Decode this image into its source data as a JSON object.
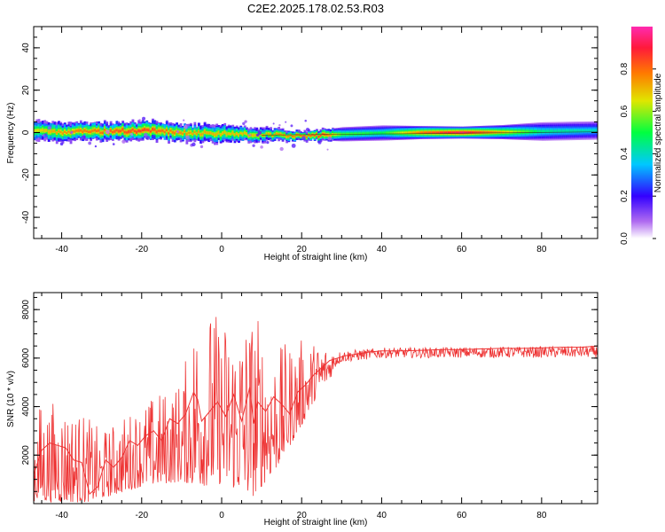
{
  "chart_data": [
    {
      "type": "heatmap",
      "title": "C2E2.2025.178.02.53.R03",
      "xlabel": "Height of straight line (km)",
      "ylabel": "Frequency (Hz)",
      "xlim": [
        -47,
        94
      ],
      "ylim": [
        -50,
        50
      ],
      "x_ticks": [
        -40,
        -20,
        0,
        20,
        40,
        60,
        80
      ],
      "y_ticks": [
        -40,
        -20,
        0,
        20,
        40
      ],
      "colorbar": {
        "label": "Normalized spectral amplitude",
        "range": [
          0.0,
          1.0
        ],
        "ticks": [
          0.0,
          0.2,
          0.4,
          0.6,
          0.8
        ],
        "colors": [
          "#ffffff",
          "#b06cf0",
          "#3300ff",
          "#00c8ff",
          "#00ff40",
          "#e0e600",
          "#ff7a00",
          "#ff1a3a",
          "#ff2ab0"
        ]
      },
      "band_profile": [
        {
          "x": -47,
          "center": 0.5,
          "halfwidth": 3.5,
          "peak": 0.65
        },
        {
          "x": -40,
          "center": 0.0,
          "halfwidth": 3.2,
          "peak": 0.75
        },
        {
          "x": -30,
          "center": 0.5,
          "halfwidth": 3.0,
          "peak": 0.8
        },
        {
          "x": -20,
          "center": 1.0,
          "halfwidth": 3.2,
          "peak": 0.85
        },
        {
          "x": -10,
          "center": 0.0,
          "halfwidth": 3.0,
          "peak": 0.75
        },
        {
          "x": 0,
          "center": -0.5,
          "halfwidth": 3.0,
          "peak": 0.7
        },
        {
          "x": 10,
          "center": -1.0,
          "halfwidth": 2.4,
          "peak": 0.7
        },
        {
          "x": 20,
          "center": -1.5,
          "halfwidth": 1.6,
          "peak": 0.8
        },
        {
          "x": 25,
          "center": -1.2,
          "halfwidth": 2.0,
          "peak": 0.85
        },
        {
          "x": 30,
          "center": -0.8,
          "halfwidth": 2.6,
          "peak": 0.55
        },
        {
          "x": 40,
          "center": -0.2,
          "halfwidth": 2.8,
          "peak": 0.5
        },
        {
          "x": 50,
          "center": 0.0,
          "halfwidth": 2.4,
          "peak": 0.8
        },
        {
          "x": 60,
          "center": 0.0,
          "halfwidth": 2.2,
          "peak": 0.95
        },
        {
          "x": 70,
          "center": 0.2,
          "halfwidth": 2.6,
          "peak": 0.7
        },
        {
          "x": 80,
          "center": 0.5,
          "halfwidth": 3.4,
          "peak": 0.45
        },
        {
          "x": 94,
          "center": 1.0,
          "halfwidth": 3.4,
          "peak": 0.4
        }
      ]
    },
    {
      "type": "line",
      "xlabel": "Height of straight line (km)",
      "ylabel": "SNR (10 * v/v)",
      "xlim": [
        -47,
        94
      ],
      "ylim": [
        0,
        8700
      ],
      "x_ticks": [
        -40,
        -20,
        0,
        20,
        40,
        60,
        80
      ],
      "y_ticks": [
        2000,
        4000,
        6000,
        8000
      ],
      "color": "#ee3333",
      "x": [
        -47,
        -45,
        -43,
        -41,
        -39,
        -37,
        -35,
        -33,
        -31,
        -29,
        -27,
        -25,
        -23,
        -21,
        -19,
        -17,
        -15,
        -13,
        -11,
        -9,
        -7,
        -6,
        -5,
        -3,
        -1,
        1,
        3,
        5,
        7,
        8,
        9,
        11,
        13,
        15,
        17,
        19,
        21,
        23,
        25,
        27,
        29,
        31,
        33,
        35,
        37,
        40,
        45,
        50,
        55,
        60,
        65,
        70,
        75,
        80,
        85,
        90,
        94
      ],
      "y": [
        1200,
        2200,
        2500,
        2400,
        2300,
        1800,
        1700,
        400,
        700,
        1800,
        1500,
        1900,
        2600,
        2400,
        2800,
        3000,
        2600,
        3500,
        3300,
        3700,
        4600,
        4300,
        3400,
        3800,
        4200,
        3600,
        4500,
        3400,
        4800,
        3300,
        4200,
        3800,
        4400,
        4100,
        3700,
        4600,
        4900,
        5300,
        5600,
        5900,
        6000,
        6100,
        6150,
        6200,
        6250,
        6300,
        6300,
        6320,
        6350,
        6350,
        6380,
        6400,
        6400,
        6420,
        6450,
        6450,
        6500
      ],
      "noise_envelope": [
        {
          "x": -47,
          "low": 50,
          "high": 4200
        },
        {
          "x": -40,
          "low": 50,
          "high": 4300
        },
        {
          "x": -34,
          "low": 50,
          "high": 3700
        },
        {
          "x": -30,
          "low": 200,
          "high": 3000
        },
        {
          "x": -20,
          "low": 700,
          "high": 4200
        },
        {
          "x": -10,
          "low": 900,
          "high": 5200
        },
        {
          "x": -6,
          "low": 700,
          "high": 8600
        },
        {
          "x": 0,
          "low": 800,
          "high": 7800
        },
        {
          "x": 8,
          "low": 300,
          "high": 8200
        },
        {
          "x": 14,
          "low": 1500,
          "high": 6500
        },
        {
          "x": 20,
          "low": 3200,
          "high": 6800
        },
        {
          "x": 25,
          "low": 4800,
          "high": 6600
        },
        {
          "x": 30,
          "low": 5700,
          "high": 6500
        },
        {
          "x": 40,
          "low": 5900,
          "high": 6600
        },
        {
          "x": 94,
          "low": 5900,
          "high": 6700
        }
      ]
    }
  ]
}
